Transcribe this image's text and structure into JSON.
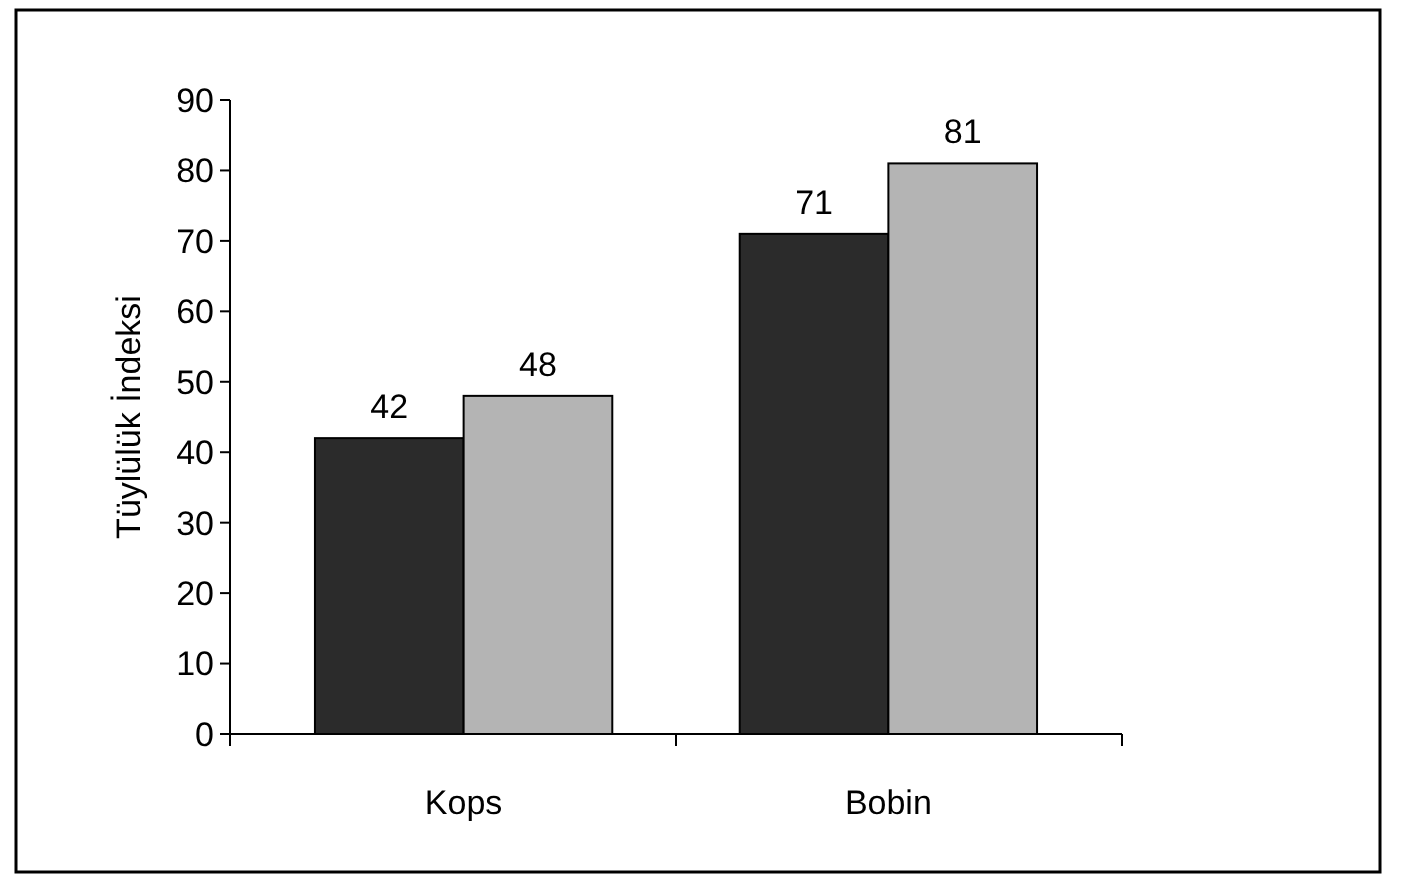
{
  "chart_data": {
    "type": "bar",
    "ylabel": "Tüylülük İndeksi",
    "categories": [
      "Kops",
      "Bobin"
    ],
    "series": [
      {
        "color": "#2b2b2b",
        "values": [
          42,
          71
        ]
      },
      {
        "color": "#b4b4b4",
        "values": [
          48,
          81
        ]
      }
    ],
    "ylim": [
      0,
      90
    ],
    "yticks": [
      0,
      10,
      20,
      30,
      40,
      50,
      60,
      70,
      80,
      90
    ],
    "data_labels": true,
    "grid": false
  }
}
